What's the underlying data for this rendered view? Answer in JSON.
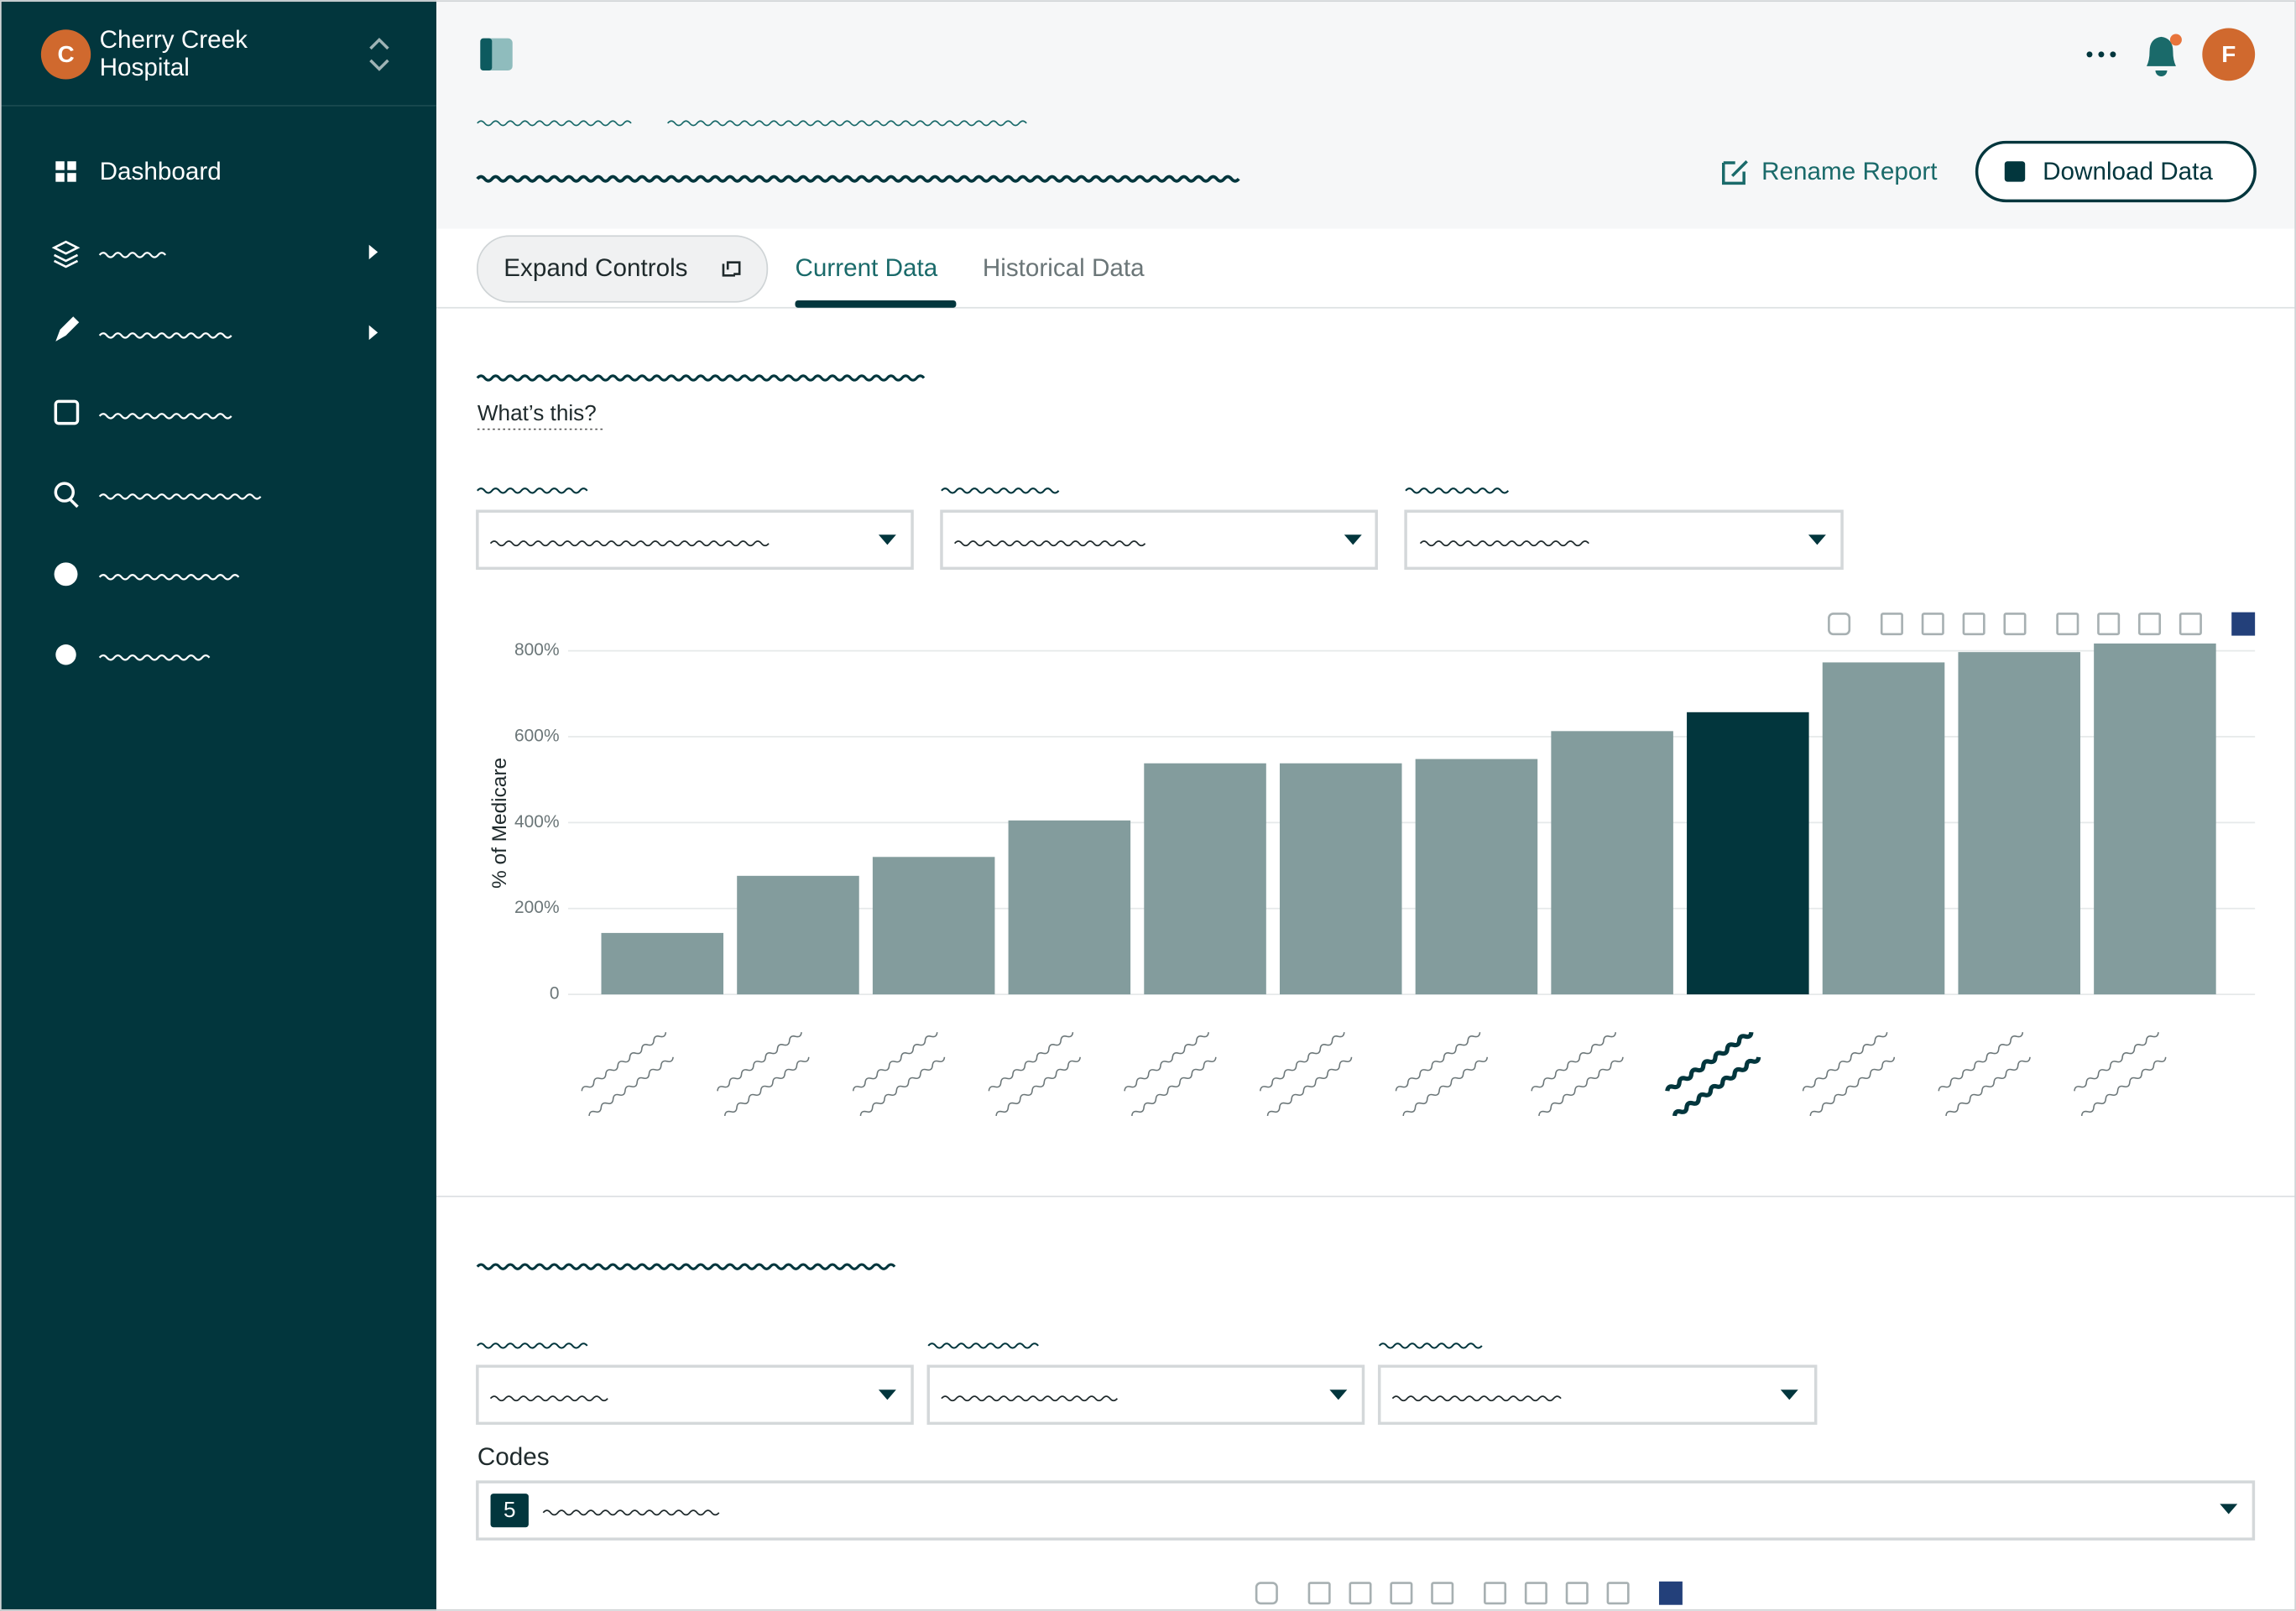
{
  "sidebar": {
    "org_initial": "C",
    "org_name": [
      "Cherry Creek",
      "Hospital"
    ],
    "nav": [
      "Dashboard"
    ]
  },
  "header": {
    "avatar": "F",
    "rename": "Rename Report",
    "download": "Download Data"
  },
  "tabs": {
    "expand": "Expand Controls",
    "items": [
      "Current Data",
      "Historical Data"
    ]
  },
  "section": {
    "help": "What’s this?",
    "codes_label": "Codes",
    "codes_count": "5"
  },
  "chart_data": {
    "type": "bar",
    "y_label": "% of Medicare",
    "categories": [
      null,
      null,
      null,
      null,
      null,
      null,
      null,
      null,
      null,
      null,
      null,
      null
    ],
    "values": [
      143,
      276,
      320,
      405,
      538,
      538,
      548,
      613,
      657,
      773,
      797,
      817
    ],
    "colors": [
      "#839c9d",
      "#839c9d",
      "#839c9d",
      "#839c9d",
      "#839c9d",
      "#839c9d",
      "#839c9d",
      "#839c9d",
      "#02363d",
      "#839c9d",
      "#839c9d",
      "#839c9d"
    ],
    "ylim": [
      0,
      825
    ],
    "yticks": [
      0,
      {
        "value": 200,
        "label": "200%"
      },
      {
        "value": 400,
        "label": "400%"
      },
      {
        "value": 600,
        "label": "600%"
      },
      {
        "value": 800,
        "label": "800%"
      }
    ],
    "grid": true
  }
}
